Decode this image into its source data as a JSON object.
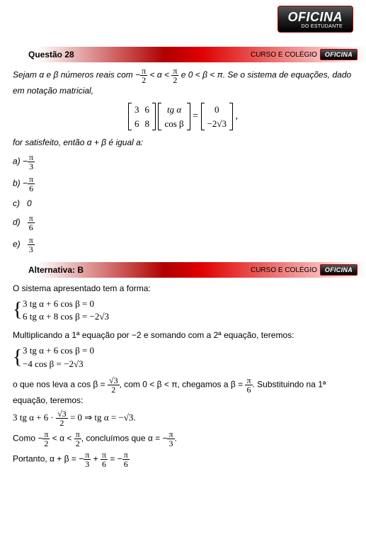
{
  "logo": {
    "main": "OFICINA",
    "sub": "DO ESTUDANTE"
  },
  "question_header": {
    "title": "Questão 28",
    "right_text": "CURSO E COLÉGIO"
  },
  "question": {
    "intro_a": "Sejam ",
    "intro_b": " e ",
    "intro_c": " números reais com ",
    "intro_d": " e ",
    "intro_e": ". Se o sistema de equações, dado em notação matricial,",
    "alpha": "α",
    "beta": "β",
    "matrix_eq": {
      "m1": [
        [
          "3",
          "6"
        ],
        [
          "6",
          "8"
        ]
      ],
      "m2": [
        [
          "tg α"
        ],
        [
          "cos β"
        ]
      ],
      "m3": [
        [
          "0"
        ],
        [
          "−2√3"
        ]
      ]
    },
    "satisfy": "for satisfeito, então α  +  β é igual a:",
    "options": {
      "a_label": "a)",
      "a_sign": "−",
      "a_num": "π",
      "a_den": "3",
      "b_label": "b)",
      "b_sign": "−",
      "b_num": "π",
      "b_den": "6",
      "c_label": "c)",
      "c_val": "0",
      "d_label": "d)",
      "d_num": "π",
      "d_den": "6",
      "e_label": "e)",
      "e_num": "π",
      "e_den": "3"
    }
  },
  "answer_header": {
    "title": "Alternativa: B",
    "right_text": "CURSO E COLÉGIO"
  },
  "solution": {
    "line1": "O sistema apresentado tem a forma:",
    "sys1_a": "3 tg α + 6 cos β = 0",
    "sys1_b": "6 tg α + 8 cos β = −2√3",
    "line2": "Multiplicando a 1ª equação por −2 e somando com a 2ª equação, teremos:",
    "sys2_a": "3 tg α + 6 cos β = 0",
    "sys2_b": "−4 cos β = −2√3",
    "line3_a": "o que nos leva a cos β = ",
    "line3_b": ", com 0 < β < π, chegamos a β = ",
    "line3_c": ". Substituindo na 1ª equação, teremos:",
    "line4": "3 tg α + 6 · ",
    "line4_b": " = 0   ⇒  tg α =  −√3.",
    "line5_a": "Como −",
    "line5_b": " < α < ",
    "line5_c": ", concluímos que α = −",
    "line5_d": ".",
    "line6_a": "Portanto, α + β = −",
    "line6_b": " + ",
    "line6_c": " = −",
    "frac_sqrt3_2_num": "√3",
    "frac_sqrt3_2_den": "2",
    "pi": "π",
    "two": "2",
    "three": "3",
    "six": "6"
  },
  "colors": {
    "brand_red": "#c00000",
    "text": "#000000",
    "bg": "#ffffff"
  }
}
